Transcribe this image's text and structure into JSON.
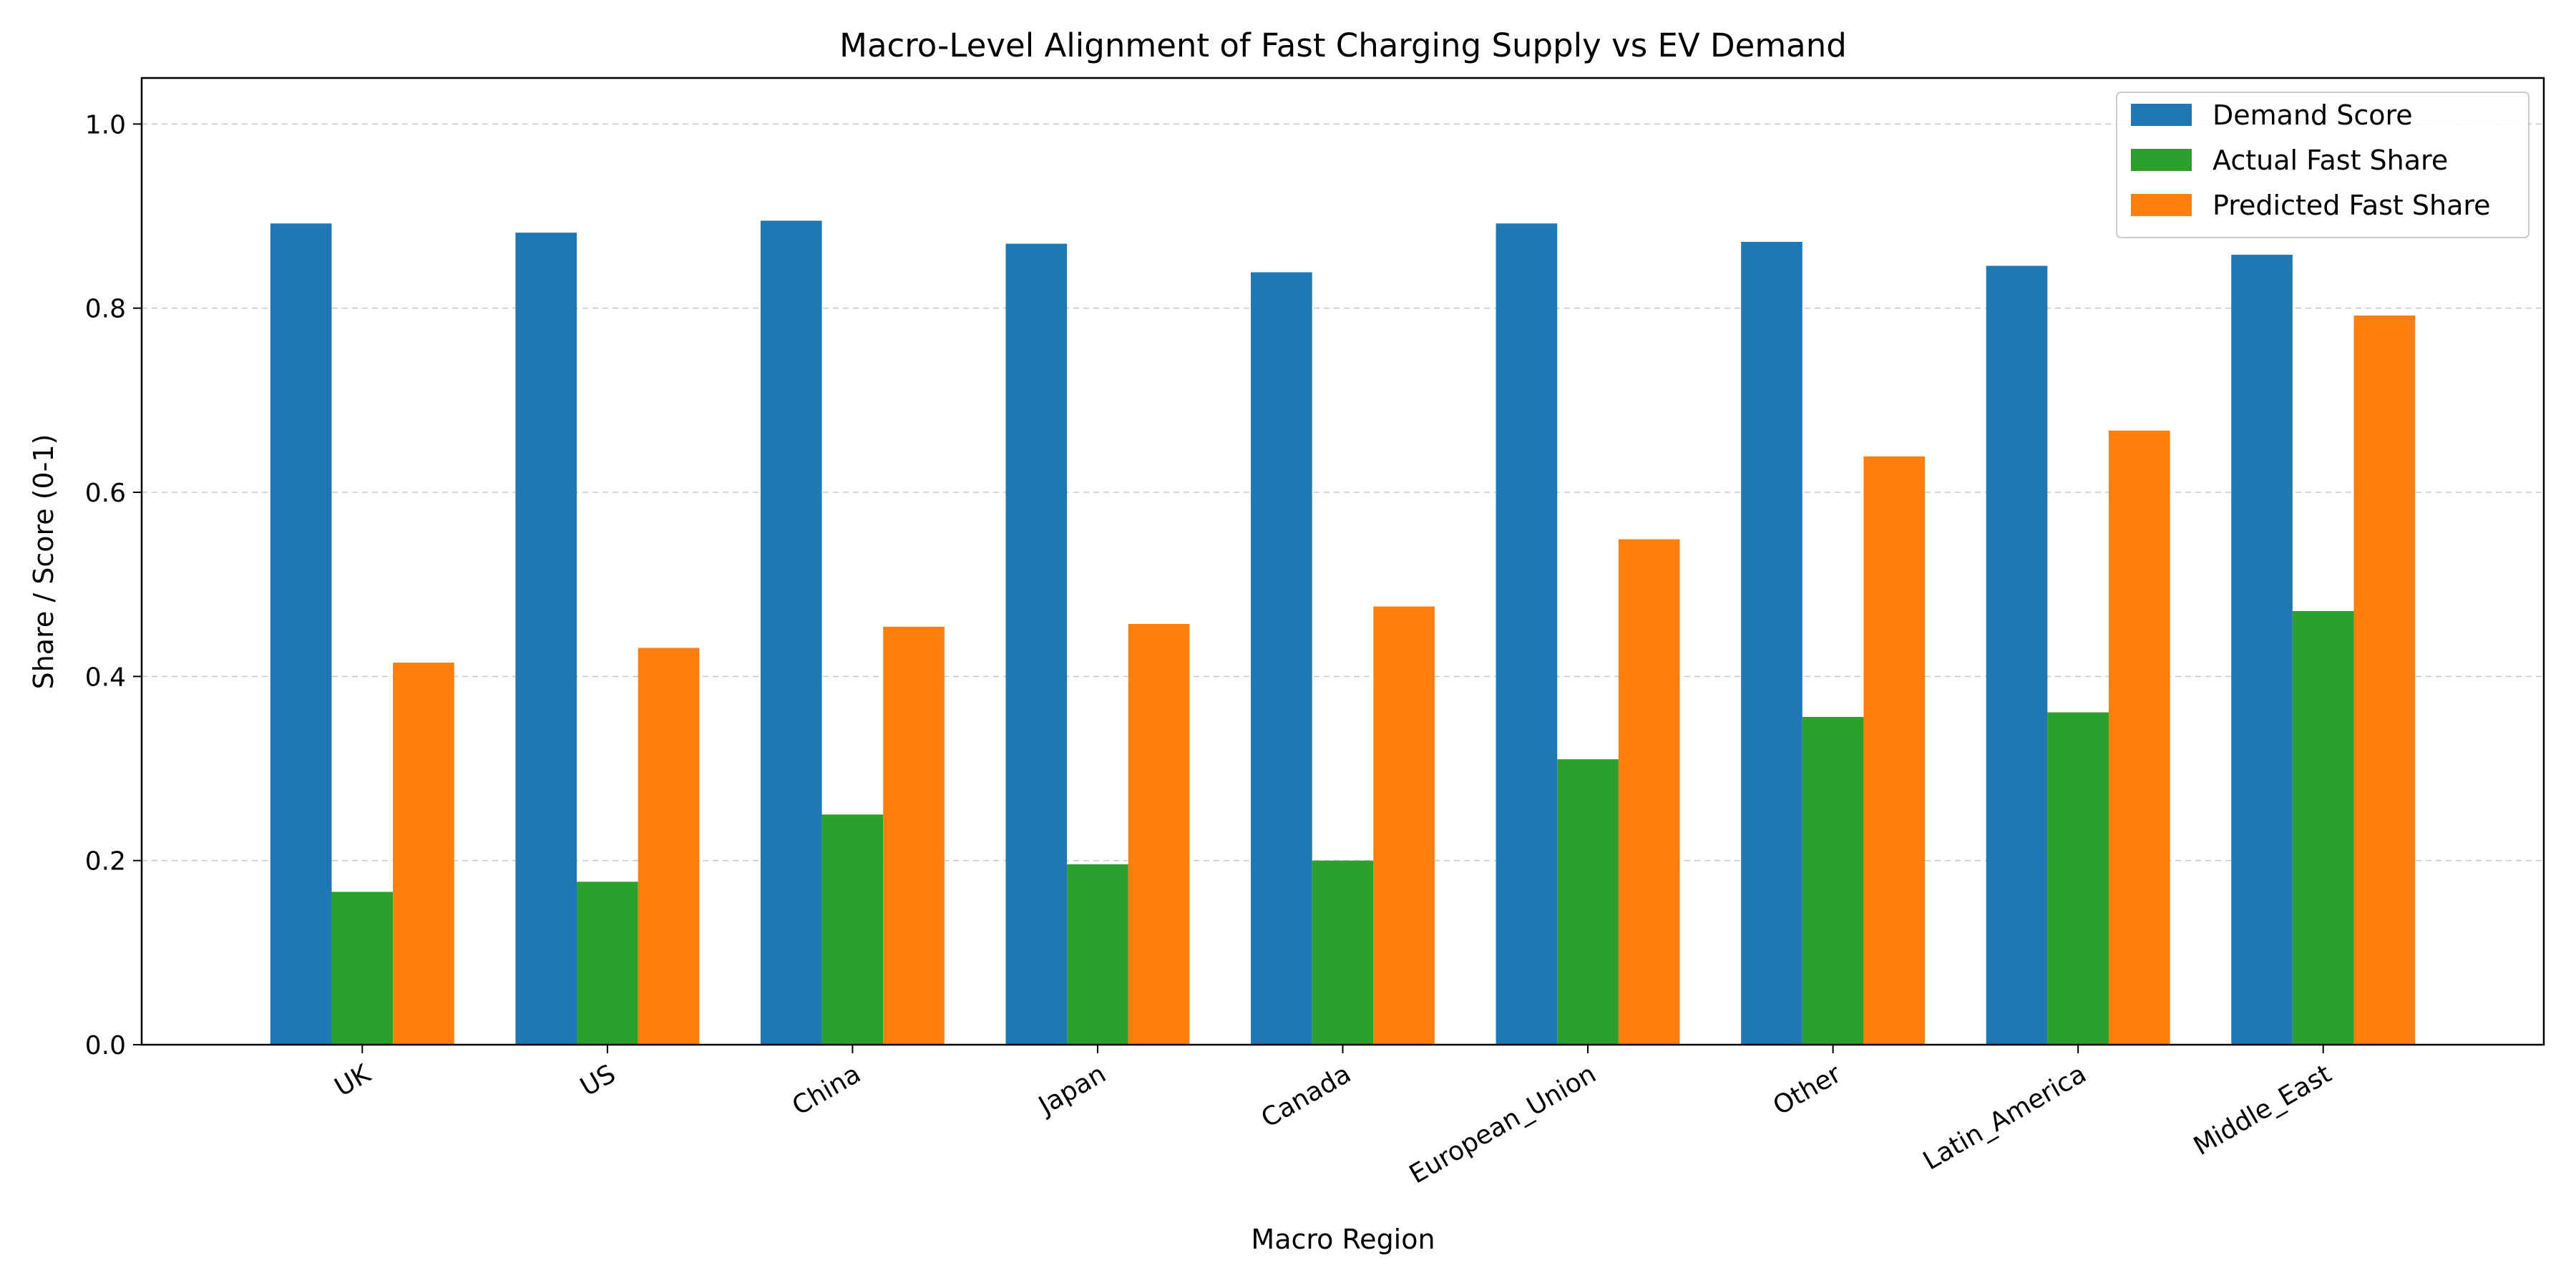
{
  "chart_data": {
    "type": "bar",
    "title": "Macro-Level Alignment of Fast Charging Supply vs EV Demand",
    "xlabel": "Macro Region",
    "ylabel": "Share / Score (0-1)",
    "ylim": [
      0,
      1.05
    ],
    "yticks": [
      0.0,
      0.2,
      0.4,
      0.6,
      0.8,
      1.0
    ],
    "ytick_labels": [
      "0.0",
      "0.2",
      "0.4",
      "0.6",
      "0.8",
      "1.0"
    ],
    "grid": "y-dashed",
    "legend_position": "top-right",
    "categories": [
      "UK",
      "US",
      "China",
      "Japan",
      "Canada",
      "European_Union",
      "Other",
      "Latin_America",
      "Middle_East"
    ],
    "series": [
      {
        "name": "Demand Score",
        "color": "#1f77b4",
        "values": [
          0.892,
          0.882,
          0.895,
          0.87,
          0.839,
          0.892,
          0.872,
          0.846,
          0.858
        ]
      },
      {
        "name": "Actual Fast Share",
        "color": "#2ca02c",
        "values": [
          0.166,
          0.177,
          0.25,
          0.196,
          0.2,
          0.31,
          0.356,
          0.361,
          0.471
        ]
      },
      {
        "name": "Predicted Fast Share",
        "color": "#ff7f0e",
        "values": [
          0.415,
          0.431,
          0.454,
          0.457,
          0.476,
          0.549,
          0.639,
          0.667,
          0.792
        ]
      }
    ]
  }
}
